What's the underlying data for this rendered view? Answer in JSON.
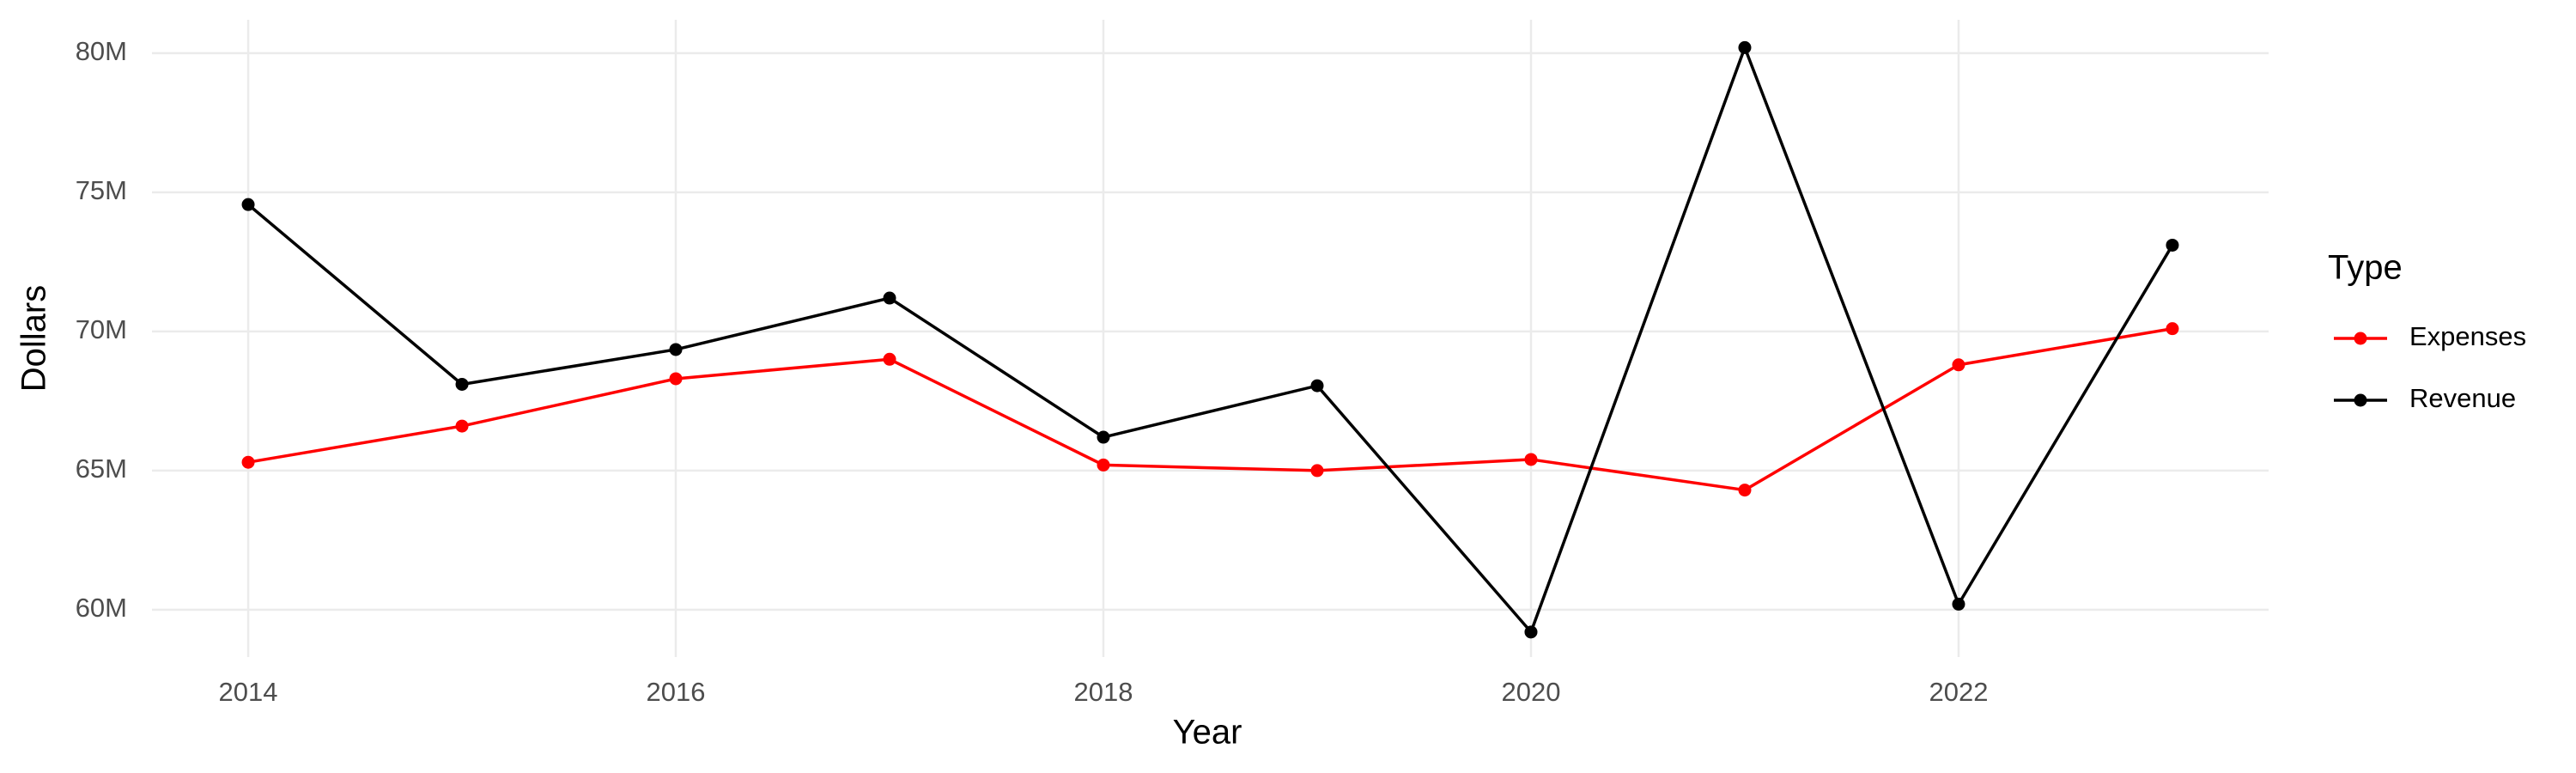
{
  "chart_data": {
    "type": "line",
    "x_label": "Year",
    "y_label": "Dollars",
    "legend_title": "Type",
    "x": [
      2014,
      2015,
      2016,
      2017,
      2018,
      2019,
      2020,
      2021,
      2022,
      2023
    ],
    "series": [
      {
        "name": "Expenses",
        "color": "#ff0000",
        "values": [
          65300000,
          66600000,
          68300000,
          69000000,
          65200000,
          65000000,
          65400000,
          64300000,
          68800000,
          70100000
        ]
      },
      {
        "name": "Revenue",
        "color": "#000000",
        "values": [
          74560000,
          68100000,
          69350000,
          71200000,
          66200000,
          68050000,
          59200000,
          80200000,
          60200000,
          73100000
        ]
      }
    ],
    "xlim": [
      2013.55,
      2023.45
    ],
    "xticks": [
      2014,
      2016,
      2018,
      2020,
      2022
    ],
    "ylim": [
      58300000,
      81200000
    ],
    "yticks": [
      {
        "value": 60000000,
        "label": "60M"
      },
      {
        "value": 65000000,
        "label": "65M"
      },
      {
        "value": 70000000,
        "label": "70M"
      },
      {
        "value": 75000000,
        "label": "75M"
      },
      {
        "value": 80000000,
        "label": "80M"
      }
    ],
    "grid": true,
    "legend_position": "right"
  }
}
